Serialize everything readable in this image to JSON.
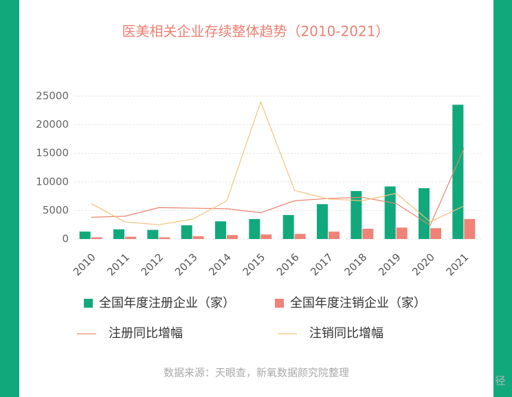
{
  "chart_data": {
    "type": "bar",
    "title": "医美相关企业存续整体趋势（2010-2021）",
    "categories": [
      "2010",
      "2011",
      "2012",
      "2013",
      "2014",
      "2015",
      "2016",
      "2017",
      "2018",
      "2019",
      "2020",
      "2021"
    ],
    "series": [
      {
        "name": "全国年度注册企业（家）",
        "color": "#11a97c",
        "kind": "bar",
        "values": [
          1300,
          1700,
          1600,
          2400,
          3100,
          3500,
          4200,
          6100,
          8400,
          9200,
          8900,
          23500
        ]
      },
      {
        "name": "全国年度注销企业（家）",
        "color": "#f08278",
        "kind": "bar",
        "values": [
          300,
          400,
          300,
          500,
          700,
          800,
          900,
          1300,
          1800,
          2000,
          1900,
          3500
        ]
      },
      {
        "name": "注册同比增幅",
        "color": "#e8826e",
        "kind": "line",
        "values": [
          3800,
          4000,
          5500,
          5400,
          5300,
          4600,
          6700,
          7100,
          7300,
          6200,
          2400,
          15900
        ]
      },
      {
        "name": "注销同比增幅",
        "color": "#f2c27a",
        "kind": "line",
        "values": [
          6200,
          3000,
          2500,
          3500,
          6700,
          24000,
          8500,
          7000,
          6700,
          8000,
          3000,
          5800
        ]
      }
    ],
    "ylim": [
      0,
      25000
    ],
    "yticks": [
      0,
      5000,
      10000,
      15000,
      20000,
      25000
    ],
    "grid": true,
    "source": "数据来源：天眼查，新氧数据颜究院整理",
    "watermark": "径"
  }
}
